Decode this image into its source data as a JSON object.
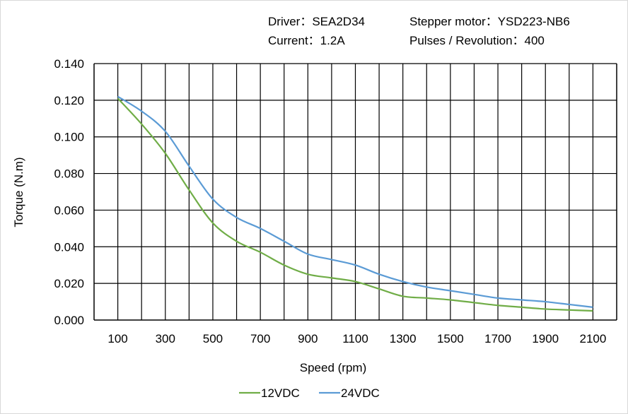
{
  "info": {
    "driver": "Driver：SEA2D34",
    "motor": "Stepper motor：YSD223-NB6",
    "current": "Current：1.2A",
    "pulses": "Pulses / Revolution：400"
  },
  "chart_data": {
    "type": "line",
    "title": "",
    "xlabel": "Speed  (rpm)",
    "ylabel": "Torque (N.m)",
    "xlim": [
      0,
      2200
    ],
    "ylim": [
      0,
      0.14
    ],
    "grid": true,
    "legend_position": "bottom",
    "x_ticks": [
      "100",
      "300",
      "500",
      "700",
      "900",
      "1100",
      "1300",
      "1500",
      "1700",
      "1900",
      "2100"
    ],
    "y_ticks": [
      "0.000",
      "0.020",
      "0.040",
      "0.060",
      "0.080",
      "0.100",
      "0.120",
      "0.140"
    ],
    "x": [
      100,
      200,
      300,
      400,
      500,
      600,
      700,
      800,
      900,
      1000,
      1100,
      1200,
      1300,
      1400,
      1500,
      1600,
      1700,
      1800,
      1900,
      2000,
      2100
    ],
    "series": [
      {
        "name": "12VDC",
        "color": "#70ad47",
        "values": [
          0.121,
          0.107,
          0.091,
          0.071,
          0.053,
          0.043,
          0.037,
          0.03,
          0.025,
          0.023,
          0.021,
          0.017,
          0.013,
          0.012,
          0.011,
          0.0095,
          0.008,
          0.007,
          0.006,
          0.0055,
          0.005
        ]
      },
      {
        "name": "24VDC",
        "color": "#5b9bd5",
        "values": [
          0.122,
          0.114,
          0.103,
          0.084,
          0.066,
          0.056,
          0.05,
          0.043,
          0.036,
          0.033,
          0.03,
          0.025,
          0.021,
          0.018,
          0.016,
          0.014,
          0.012,
          0.011,
          0.01,
          0.0085,
          0.007
        ]
      }
    ]
  }
}
